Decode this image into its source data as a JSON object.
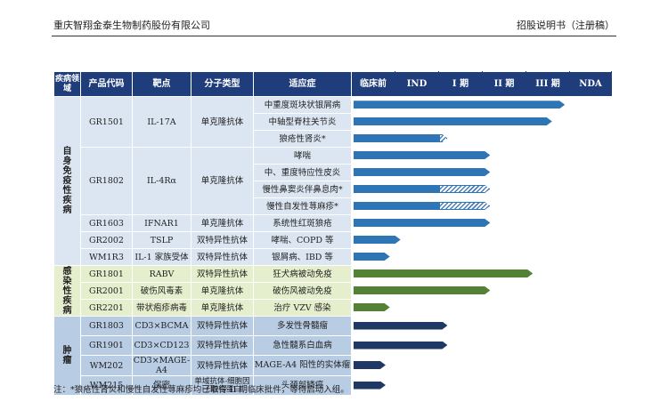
{
  "header": {
    "company": "重庆智翔金泰生物制药股份有限公司",
    "doc": "招股说明书（注册稿）"
  },
  "columns": [
    "疾病领域",
    "产品代码",
    "靶点",
    "分子类型",
    "适应症",
    "临床前",
    "IND",
    "I 期",
    "II 期",
    "III 期",
    "NDA"
  ],
  "rows": [
    {
      "area": "自身免疫性疾病",
      "code": "GR1501",
      "target": "IL-17A",
      "type": "单克隆抗体",
      "ind": "中重度斑块状银屑病",
      "stage": 4.95,
      "style": "blue"
    },
    {
      "area": "",
      "code": "",
      "target": "",
      "type": "",
      "ind": "中轴型脊柱关节炎",
      "stage": 4.65,
      "style": "blue"
    },
    {
      "area": "",
      "code": "",
      "target": "",
      "type": "",
      "ind": "狼疮性肾炎*",
      "stage": 2.2,
      "style": "split"
    },
    {
      "area": "",
      "code": "GR1802",
      "target": "IL-4Rα",
      "type": "单克隆抗体",
      "ind": "哮喘",
      "stage": 3.2,
      "style": "blue"
    },
    {
      "area": "",
      "code": "",
      "target": "",
      "type": "",
      "ind": "中、重度特应性皮炎",
      "stage": 3.2,
      "style": "blue"
    },
    {
      "area": "",
      "code": "",
      "target": "",
      "type": "",
      "ind": "慢性鼻窦炎伴鼻息肉*",
      "stage": 3.2,
      "style": "split"
    },
    {
      "area": "",
      "code": "",
      "target": "",
      "type": "",
      "ind": "慢性自发性荨麻疹*",
      "stage": 3.2,
      "style": "split"
    },
    {
      "area": "",
      "code": "GR1603",
      "target": "IFNAR1",
      "type": "单克隆抗体",
      "ind": "系统性红斑狼疮",
      "stage": 3.2,
      "style": "blue"
    },
    {
      "area": "",
      "code": "GR2002",
      "target": "TSLP",
      "type": "双特异性抗体",
      "ind": "哮喘、COPD 等",
      "stage": 1.1,
      "style": "blue"
    },
    {
      "area": "",
      "code": "WM1R3",
      "target": "IL-1 家族受体",
      "type": "双特异性抗体",
      "ind": "银屑病、IBD 等",
      "stage": 0.85,
      "style": "blue"
    },
    {
      "area": "感染性疾病",
      "code": "GR1801",
      "target": "RABV",
      "type": "双特异性抗体",
      "ind": "狂犬病被动免疫",
      "stage": 4.2,
      "style": "green"
    },
    {
      "area": "",
      "code": "GR2001",
      "target": "破伤风毒素",
      "type": "单克隆抗体",
      "ind": "破伤风被动免疫",
      "stage": 3.2,
      "style": "green"
    },
    {
      "area": "",
      "code": "GR2201",
      "target": "带状疱疹病毒",
      "type": "单克隆抗体",
      "ind": "治疗 VZV 感染",
      "stage": 0.85,
      "style": "green"
    },
    {
      "area": "肿瘤",
      "code": "GR1803",
      "target": "CD3×BCMA",
      "type": "双特异性抗体",
      "ind": "多发性骨髓瘤",
      "stage": 2.2,
      "style": "navy"
    },
    {
      "area": "",
      "code": "GR1901",
      "target": "CD3×CD123",
      "type": "双特异性抗体",
      "ind": "急性髓系白血病",
      "stage": 2.2,
      "style": "navy"
    },
    {
      "area": "",
      "code": "WM202",
      "target": "CD3×MAGE-A4",
      "type": "双特异性抗体",
      "ind": "MAGE-A4 阳性的实体瘤",
      "stage": 0.75,
      "style": "navy"
    },
    {
      "area": "",
      "code": "WM215",
      "target": "保密",
      "type": "单域抗体-细胞因子融合蛋白",
      "ind": "头颈部鳞癌",
      "stage": 0.75,
      "style": "navy"
    }
  ],
  "note": "注：*狼疮性肾炎和慢性自发性荨麻疹均已取得 II 期临床批件，等待启动入组。"
}
